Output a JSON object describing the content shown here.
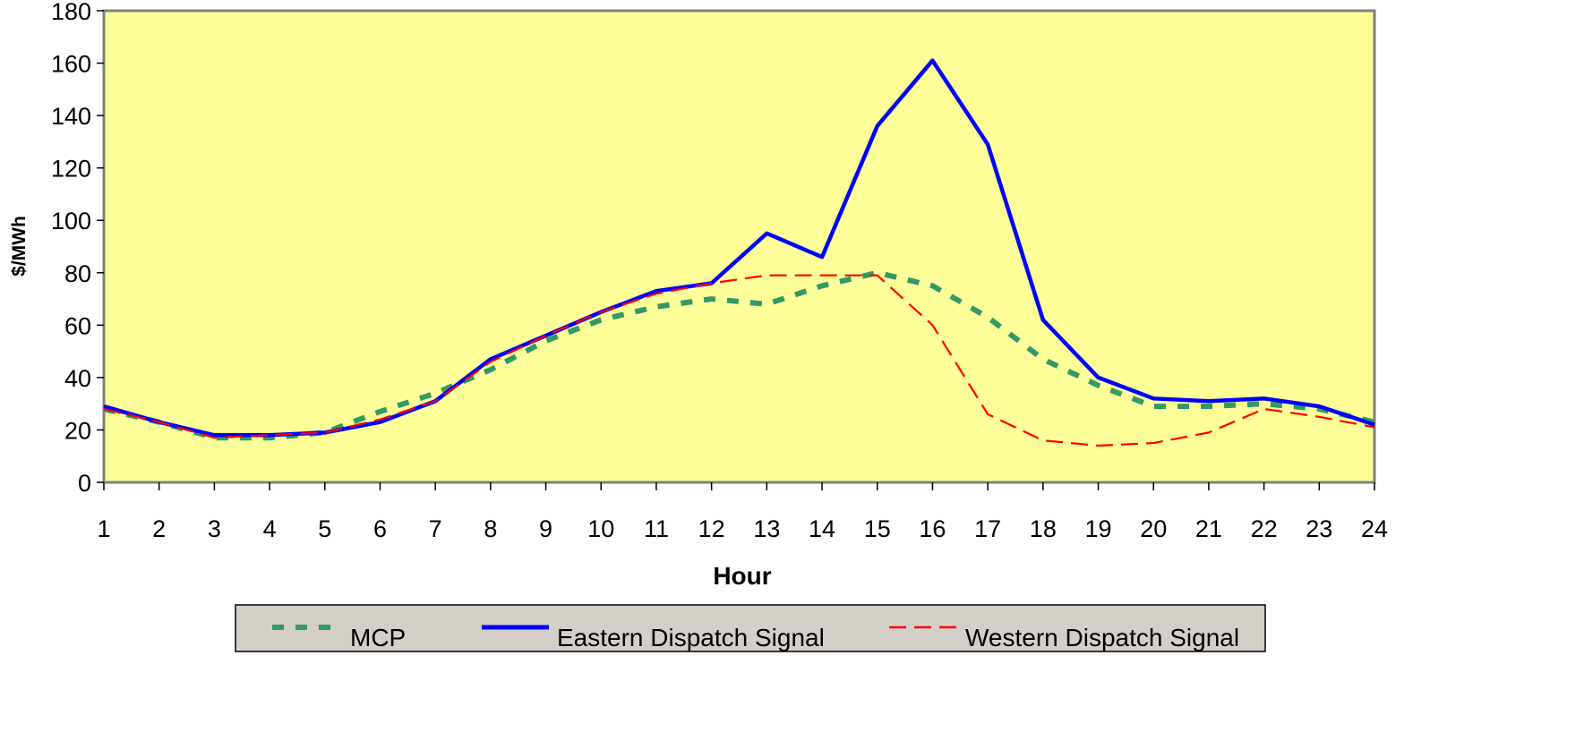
{
  "chart_data": {
    "type": "line",
    "title": "",
    "xlabel": "Hour",
    "ylabel": "$/MWh",
    "x": [
      1,
      2,
      3,
      4,
      5,
      6,
      7,
      8,
      9,
      10,
      11,
      12,
      13,
      14,
      15,
      16,
      17,
      18,
      19,
      20,
      21,
      22,
      23,
      24
    ],
    "xticks": [
      "1",
      "2",
      "3",
      "4",
      "5",
      "6",
      "7",
      "8",
      "9",
      "10",
      "11",
      "12",
      "13",
      "14",
      "15",
      "16",
      "17",
      "18",
      "19",
      "20",
      "21",
      "22",
      "23",
      "24"
    ],
    "ylim": [
      0,
      180
    ],
    "yticks": [
      "0",
      "20",
      "40",
      "60",
      "80",
      "100",
      "120",
      "140",
      "160",
      "180"
    ],
    "grid": false,
    "legend": "bottom",
    "plot_background": "#FFFF99",
    "legend_background": "#D4CFC9",
    "series": [
      {
        "name": "MCP",
        "color": "#339966",
        "style": "dashed-thick",
        "values": [
          28,
          23,
          17,
          17,
          19,
          27,
          34,
          43,
          54,
          62,
          67,
          70,
          68,
          75,
          80,
          75,
          63,
          47,
          37,
          29,
          29,
          30,
          28,
          23
        ]
      },
      {
        "name": "Eastern Dispatch Signal",
        "color": "#0000FF",
        "style": "solid",
        "values": [
          29,
          23,
          18,
          18,
          19,
          23,
          31,
          47,
          56,
          65,
          73,
          76,
          95,
          86,
          136,
          161,
          129,
          62,
          40,
          32,
          31,
          32,
          29,
          22
        ]
      },
      {
        "name": "Western Dispatch Signal",
        "color": "#FF0000",
        "style": "dashed-thin",
        "values": [
          28,
          23,
          17,
          18,
          19,
          24,
          31,
          46,
          56,
          65,
          72,
          76,
          79,
          79,
          79,
          60,
          26,
          16,
          14,
          15,
          19,
          28,
          25,
          21
        ]
      }
    ]
  }
}
